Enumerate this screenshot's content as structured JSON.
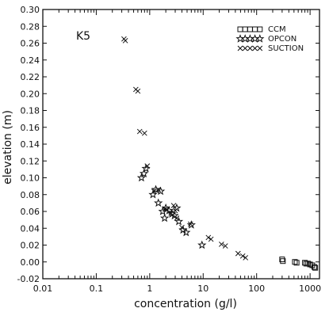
{
  "chart_data": {
    "type": "scatter",
    "panel_label": "K5",
    "xlabel": "concentration (g/l)",
    "ylabel": "elevation (m)",
    "x_scale": "log",
    "xlim": [
      0.01,
      1500
    ],
    "ylim": [
      -0.02,
      0.3
    ],
    "x_ticks": [
      {
        "value": 0.01,
        "label": "0.01"
      },
      {
        "value": 0.1,
        "label": "0.1"
      },
      {
        "value": 1,
        "label": "1"
      },
      {
        "value": 10,
        "label": "10"
      },
      {
        "value": 100,
        "label": "100"
      },
      {
        "value": 1000,
        "label": "1000"
      }
    ],
    "y_ticks": [
      {
        "value": -0.02,
        "label": "-0.02"
      },
      {
        "value": 0.0,
        "label": "0.00"
      },
      {
        "value": 0.02,
        "label": "0.02"
      },
      {
        "value": 0.04,
        "label": "0.04"
      },
      {
        "value": 0.06,
        "label": "0.06"
      },
      {
        "value": 0.08,
        "label": "0.08"
      },
      {
        "value": 0.1,
        "label": "0.10"
      },
      {
        "value": 0.12,
        "label": "0.12"
      },
      {
        "value": 0.14,
        "label": "0.14"
      },
      {
        "value": 0.16,
        "label": "0.16"
      },
      {
        "value": 0.18,
        "label": "0.18"
      },
      {
        "value": 0.2,
        "label": "0.20"
      },
      {
        "value": 0.22,
        "label": "0.22"
      },
      {
        "value": 0.24,
        "label": "0.24"
      },
      {
        "value": 0.26,
        "label": "0.26"
      },
      {
        "value": 0.28,
        "label": "0.28"
      },
      {
        "value": 0.3,
        "label": "0.30"
      }
    ],
    "grid": false,
    "legend_position": "top-right",
    "series": [
      {
        "name": "CCM",
        "legend_sample": "□□□□□",
        "marker": "square",
        "points": [
          [
            300,
            0.003
          ],
          [
            310,
            0.001
          ],
          [
            520,
            0.0
          ],
          [
            560,
            -0.001
          ],
          [
            800,
            -0.001
          ],
          [
            850,
            -0.002
          ],
          [
            920,
            -0.002
          ],
          [
            1000,
            -0.003
          ],
          [
            1100,
            -0.004
          ],
          [
            1200,
            -0.006
          ],
          [
            1250,
            -0.007
          ]
        ]
      },
      {
        "name": "OPCON",
        "legend_sample": "✩✩✩✩✩",
        "marker": "star",
        "points": [
          [
            0.7,
            0.1
          ],
          [
            0.78,
            0.105
          ],
          [
            0.85,
            0.111
          ],
          [
            1.15,
            0.08
          ],
          [
            1.3,
            0.086
          ],
          [
            1.45,
            0.07
          ],
          [
            1.6,
            0.084
          ],
          [
            1.75,
            0.06
          ],
          [
            1.9,
            0.052
          ],
          [
            2.0,
            0.064
          ],
          [
            2.3,
            0.061
          ],
          [
            2.6,
            0.057
          ],
          [
            2.9,
            0.055
          ],
          [
            3.2,
            0.064
          ],
          [
            3.5,
            0.048
          ],
          [
            4.2,
            0.038
          ],
          [
            4.8,
            0.035
          ],
          [
            6.0,
            0.044
          ],
          [
            9.5,
            0.02
          ]
        ]
      },
      {
        "name": "SUCTION",
        "legend_sample": "×××××",
        "marker": "cross",
        "points": [
          [
            0.33,
            0.265
          ],
          [
            0.35,
            0.263
          ],
          [
            0.55,
            0.205
          ],
          [
            0.6,
            0.203
          ],
          [
            0.65,
            0.155
          ],
          [
            0.8,
            0.153
          ],
          [
            0.9,
            0.114
          ],
          [
            1.2,
            0.084
          ],
          [
            1.45,
            0.086
          ],
          [
            1.95,
            0.063
          ],
          [
            2.1,
            0.062
          ],
          [
            2.5,
            0.058
          ],
          [
            2.8,
            0.067
          ],
          [
            3.0,
            0.061
          ],
          [
            3.2,
            0.052
          ],
          [
            4.0,
            0.041
          ],
          [
            5.8,
            0.045
          ],
          [
            12.5,
            0.029
          ],
          [
            14.0,
            0.027
          ],
          [
            22.0,
            0.021
          ],
          [
            26.0,
            0.019
          ],
          [
            45.0,
            0.01
          ],
          [
            55.0,
            0.007
          ],
          [
            62.0,
            0.005
          ]
        ]
      }
    ]
  }
}
